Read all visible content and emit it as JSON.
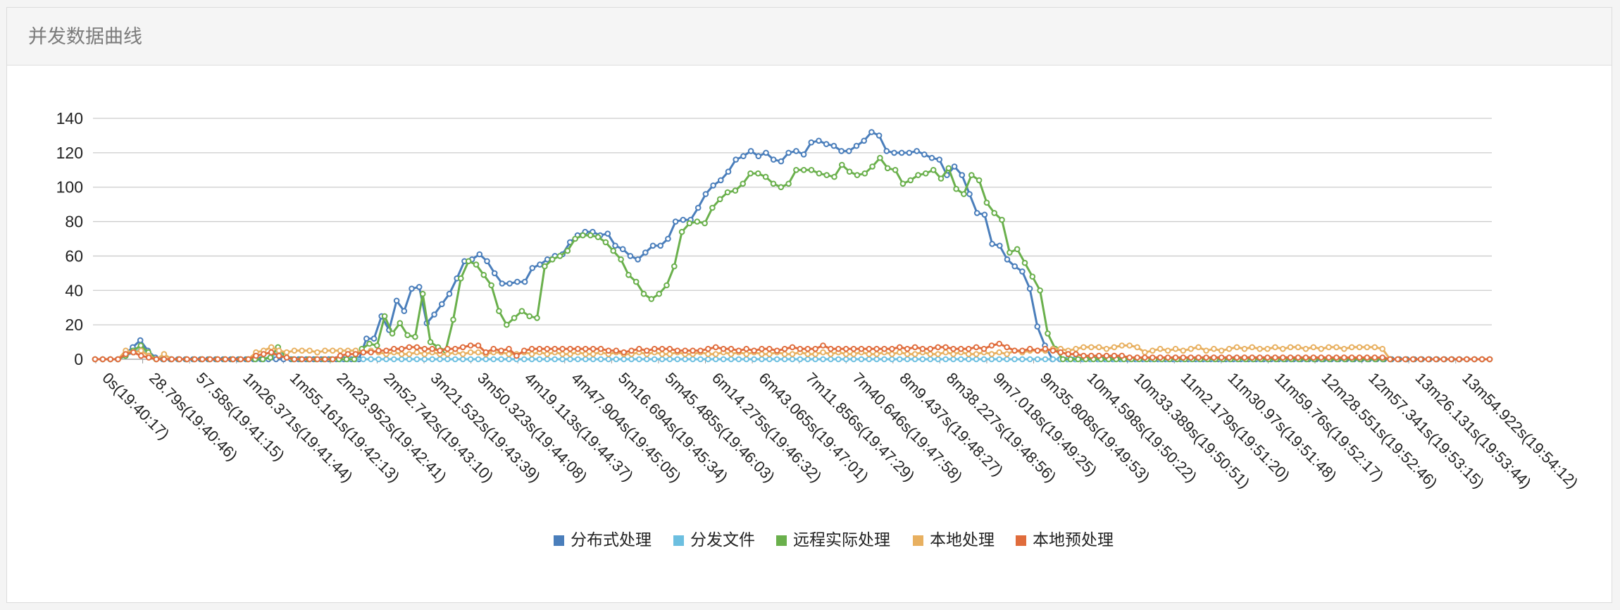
{
  "panel": {
    "title": "并发数据曲线"
  },
  "colors": {
    "grid": "#cccccc",
    "axis": "#999999",
    "text": "#222222"
  },
  "chart_data": {
    "type": "line",
    "title": "",
    "xlabel": "",
    "ylabel": "",
    "ylim": [
      0,
      140
    ],
    "yticks": [
      0,
      20,
      40,
      60,
      80,
      100,
      120,
      140
    ],
    "grid": true,
    "legend_position": "bottom",
    "x_tick_labels": [
      "0s(19:40:17)",
      "28.79s(19:40:46)",
      "57.58s(19:41:15)",
      "1m26.371s(19:41:44)",
      "1m55.161s(19:42:13)",
      "2m23.952s(19:42:41)",
      "2m52.742s(19:43:10)",
      "3m21.532s(19:43:39)",
      "3m50.323s(19:44:08)",
      "4m19.113s(19:44:37)",
      "4m47.904s(19:45:05)",
      "5m16.694s(19:45:34)",
      "5m45.485s(19:46:03)",
      "6m14.275s(19:46:32)",
      "6m43.065s(19:47:01)",
      "7m11.856s(19:47:29)",
      "7m40.646s(19:47:58)",
      "8m9.437s(19:48:27)",
      "8m38.227s(19:48:56)",
      "9m7.018s(19:49:25)",
      "9m35.808s(19:49:53)",
      "10m4.598s(19:50:22)",
      "10m33.389s(19:50:51)",
      "11m2.179s(19:51:20)",
      "11m30.97s(19:51:48)",
      "11m59.76s(19:52:17)",
      "12m28.551s(19:52:46)",
      "12m57.341s(19:53:15)",
      "13m26.131s(19:53:44)",
      "13m54.922s(19:54:12)"
    ],
    "series": [
      {
        "name": "分布式处理",
        "color": "#4a7ebb",
        "values": [
          0,
          0,
          0,
          0,
          3,
          7,
          11,
          5,
          1,
          0,
          0,
          0,
          0,
          0,
          0,
          0,
          0,
          0,
          0,
          0,
          0,
          0,
          0,
          0,
          0,
          0,
          0,
          0,
          0,
          0,
          0,
          0,
          0,
          0,
          0,
          0,
          12,
          12,
          25,
          17,
          34,
          28,
          41,
          42,
          21,
          26,
          32,
          38,
          47,
          57,
          58,
          61,
          57,
          50,
          44,
          44,
          45,
          45,
          53,
          55,
          58,
          60,
          61,
          68,
          72,
          74,
          74,
          72,
          73,
          66,
          64,
          60,
          58,
          62,
          66,
          66,
          70,
          80,
          81,
          81,
          88,
          96,
          101,
          104,
          109,
          116,
          118,
          121,
          118,
          120,
          116,
          115,
          120,
          121,
          119,
          126,
          127,
          125,
          124,
          121,
          121,
          124,
          127,
          132,
          130,
          121,
          120,
          120,
          120,
          121,
          119,
          117,
          116,
          107,
          112,
          107,
          96,
          85,
          84,
          67,
          66,
          58,
          54,
          51,
          41,
          19,
          8,
          0,
          0,
          0,
          0,
          0,
          0,
          0,
          0,
          0,
          0,
          0,
          0,
          0,
          0,
          0,
          0,
          0,
          0,
          0,
          0,
          0,
          0,
          0,
          0,
          0,
          0,
          0,
          0,
          0,
          0,
          0,
          0,
          0,
          0,
          0,
          0,
          0,
          0,
          0,
          0,
          0,
          0,
          0,
          0,
          0,
          0,
          0,
          0,
          0,
          0,
          0,
          0,
          0,
          0,
          0,
          0,
          0,
          0,
          0
        ]
      },
      {
        "name": "分发文件",
        "color": "#6cbfe0",
        "values": [
          0,
          0,
          0,
          0,
          2,
          4,
          6,
          3,
          0,
          0,
          0,
          0,
          0,
          0,
          0,
          0,
          0,
          0,
          0,
          0,
          0,
          0,
          0,
          2,
          4,
          1,
          0,
          0,
          0,
          0,
          0,
          0,
          0,
          0,
          0,
          0,
          0,
          0,
          0,
          0,
          0,
          0,
          0,
          0,
          0,
          0,
          0,
          0,
          0,
          0,
          0,
          0,
          0,
          0,
          0,
          0,
          0,
          0,
          0,
          0,
          0,
          0,
          0,
          0,
          0,
          0,
          0,
          0,
          0,
          0,
          0,
          0,
          0,
          0,
          0,
          0,
          0,
          0,
          0,
          0,
          0,
          0,
          0,
          0,
          0,
          0,
          0,
          0,
          0,
          0,
          0,
          0,
          0,
          0,
          0,
          0,
          0,
          0,
          0,
          0,
          0,
          0,
          0,
          0,
          0,
          0,
          0,
          0,
          0,
          0,
          0,
          0,
          0,
          0,
          0,
          0,
          0,
          0,
          0,
          0,
          0,
          0,
          0,
          0,
          0,
          0,
          0,
          0,
          0,
          0,
          0,
          0,
          0,
          0,
          0,
          0,
          0,
          0,
          0,
          0,
          0,
          0,
          0,
          0,
          0,
          0,
          0,
          0,
          0,
          0,
          0,
          0,
          0,
          0,
          0,
          0,
          0,
          0,
          0,
          0,
          0,
          0,
          0,
          0,
          0,
          0,
          0,
          0,
          0,
          0,
          0,
          0,
          0,
          0,
          0,
          0,
          0,
          0,
          0,
          0,
          0,
          0,
          0
        ]
      },
      {
        "name": "远程实际处理",
        "color": "#6ab04c",
        "values": [
          0,
          0,
          0,
          0,
          2,
          5,
          8,
          4,
          0,
          0,
          0,
          0,
          0,
          0,
          0,
          0,
          0,
          0,
          0,
          0,
          0,
          0,
          0,
          1,
          7,
          2,
          0,
          0,
          0,
          0,
          0,
          0,
          0,
          0,
          0,
          6,
          9,
          8,
          25,
          15,
          21,
          14,
          13,
          38,
          10,
          7,
          5,
          23,
          47,
          57,
          55,
          49,
          43,
          28,
          20,
          24,
          28,
          25,
          24,
          54,
          58,
          60,
          63,
          70,
          72,
          72,
          71,
          68,
          63,
          58,
          49,
          45,
          38,
          35,
          38,
          43,
          54,
          74,
          79,
          80,
          79,
          88,
          93,
          97,
          98,
          102,
          108,
          108,
          106,
          102,
          100,
          102,
          110,
          110,
          110,
          108,
          107,
          106,
          113,
          109,
          107,
          108,
          112,
          117,
          111,
          110,
          102,
          104,
          107,
          108,
          110,
          105,
          111,
          99,
          96,
          107,
          104,
          91,
          85,
          81,
          62,
          64,
          56,
          48,
          40,
          15,
          6,
          0,
          0,
          0,
          0,
          0,
          0,
          0,
          0,
          0,
          0,
          0,
          0,
          0,
          0,
          0,
          0,
          0,
          0,
          0,
          0,
          0,
          0,
          0,
          0,
          0,
          0,
          0,
          0,
          0,
          0,
          0,
          0,
          0,
          0,
          0,
          0,
          0,
          0,
          0,
          0,
          0,
          0,
          0,
          0,
          0,
          0,
          0,
          0,
          0,
          0,
          0,
          0,
          0,
          0,
          0,
          0,
          0
        ]
      },
      {
        "name": "本地处理",
        "color": "#e8b060",
        "values": [
          0,
          0,
          0,
          0,
          5,
          4,
          5,
          2,
          0,
          3,
          0,
          0,
          0,
          0,
          0,
          0,
          0,
          0,
          0,
          0,
          0,
          4,
          5,
          7,
          5,
          4,
          5,
          5,
          5,
          4,
          5,
          5,
          5,
          5,
          5,
          4,
          5,
          4,
          3,
          4,
          3,
          3,
          4,
          3,
          4,
          3,
          3,
          4,
          3,
          4,
          4,
          3,
          4,
          4,
          3,
          3,
          4,
          3,
          4,
          3,
          4,
          3,
          3,
          4,
          3,
          3,
          4,
          3,
          4,
          3,
          3,
          4,
          3,
          4,
          3,
          3,
          4,
          3,
          3,
          4,
          3,
          3,
          4,
          3,
          4,
          3,
          4,
          3,
          3,
          4,
          3,
          3,
          4,
          3,
          3,
          4,
          3,
          4,
          3,
          3,
          4,
          3,
          3,
          4,
          3,
          4,
          3,
          3,
          4,
          3,
          3,
          4,
          3,
          4,
          3,
          3,
          4,
          3,
          4,
          3,
          5,
          4,
          5,
          5,
          5,
          6,
          6,
          5,
          6,
          7,
          7,
          7,
          6,
          7,
          8,
          8,
          7,
          4,
          5,
          6,
          5,
          6,
          5,
          6,
          7,
          5,
          6,
          5,
          6,
          7,
          6,
          7,
          6,
          6,
          7,
          6,
          7,
          7,
          6,
          7,
          6,
          7,
          7,
          6,
          7,
          7,
          7,
          7,
          6,
          0,
          0,
          0,
          0,
          0,
          0,
          0,
          0,
          0,
          0,
          0,
          0,
          0,
          0
        ]
      },
      {
        "name": "本地预处理",
        "color": "#e06c3c",
        "values": [
          0,
          0,
          0,
          0,
          3,
          4,
          2,
          1,
          0,
          0,
          0,
          0,
          0,
          0,
          0,
          0,
          0,
          0,
          0,
          0,
          0,
          2,
          3,
          4,
          2,
          1,
          0,
          0,
          0,
          0,
          0,
          0,
          2,
          3,
          3,
          4,
          4,
          5,
          5,
          6,
          6,
          7,
          7,
          6,
          6,
          5,
          6,
          6,
          7,
          8,
          8,
          4,
          6,
          5,
          6,
          2,
          5,
          6,
          6,
          6,
          6,
          6,
          6,
          6,
          6,
          6,
          6,
          5,
          5,
          4,
          5,
          6,
          5,
          6,
          6,
          6,
          5,
          5,
          5,
          5,
          6,
          7,
          6,
          6,
          5,
          6,
          5,
          6,
          6,
          5,
          6,
          7,
          6,
          6,
          6,
          8,
          6,
          6,
          6,
          6,
          6,
          6,
          6,
          6,
          6,
          7,
          6,
          7,
          6,
          6,
          7,
          7,
          6,
          6,
          6,
          7,
          6,
          8,
          9,
          7,
          5,
          5,
          6,
          5,
          6,
          5,
          4,
          3,
          3,
          2,
          2,
          2,
          2,
          2,
          2,
          1,
          1,
          1,
          1,
          1,
          1,
          1,
          1,
          1,
          1,
          1,
          1,
          1,
          1,
          1,
          1,
          1,
          1,
          1,
          1,
          1,
          1,
          1,
          1,
          1,
          1,
          1,
          1,
          1,
          1,
          1,
          1,
          1,
          1,
          0,
          0,
          0,
          0,
          0,
          0,
          0,
          0,
          0,
          0,
          0,
          0,
          0,
          0
        ]
      }
    ]
  }
}
